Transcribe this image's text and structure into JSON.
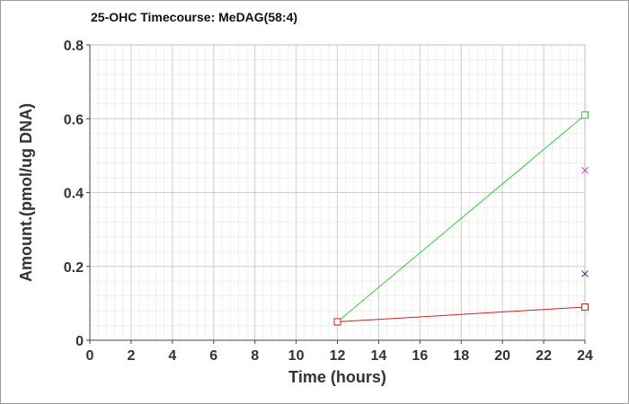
{
  "chart_data": {
    "type": "line",
    "title": "25-OHC Timecourse: MeDAG(58:4)",
    "xlabel": "Time (hours)",
    "ylabel": "Amount.(pmol/ug DNA)",
    "xlim": [
      0,
      24
    ],
    "ylim": [
      0,
      0.8
    ],
    "xticks": [
      0,
      2,
      4,
      6,
      8,
      10,
      12,
      14,
      16,
      18,
      20,
      22,
      24
    ],
    "yticks": [
      0,
      0.2,
      0.4,
      0.6,
      0.8
    ],
    "ytick_labels": [
      "0",
      "0.2",
      "0.4",
      "0.6",
      "0.8"
    ],
    "grid": true,
    "legend": "none",
    "series": [
      {
        "color": "#33cc33",
        "marker": "square",
        "x": [
          12,
          24
        ],
        "y": [
          0.05,
          0.61
        ]
      },
      {
        "color": "#cc2222",
        "marker": "square",
        "x": [
          12,
          24
        ],
        "y": [
          0.05,
          0.09
        ]
      },
      {
        "color": "#cc33cc",
        "marker": "x",
        "x": [
          24
        ],
        "y": [
          0.46
        ]
      },
      {
        "color": "#333399",
        "marker": "x",
        "x": [
          24
        ],
        "y": [
          0.18
        ]
      }
    ]
  }
}
